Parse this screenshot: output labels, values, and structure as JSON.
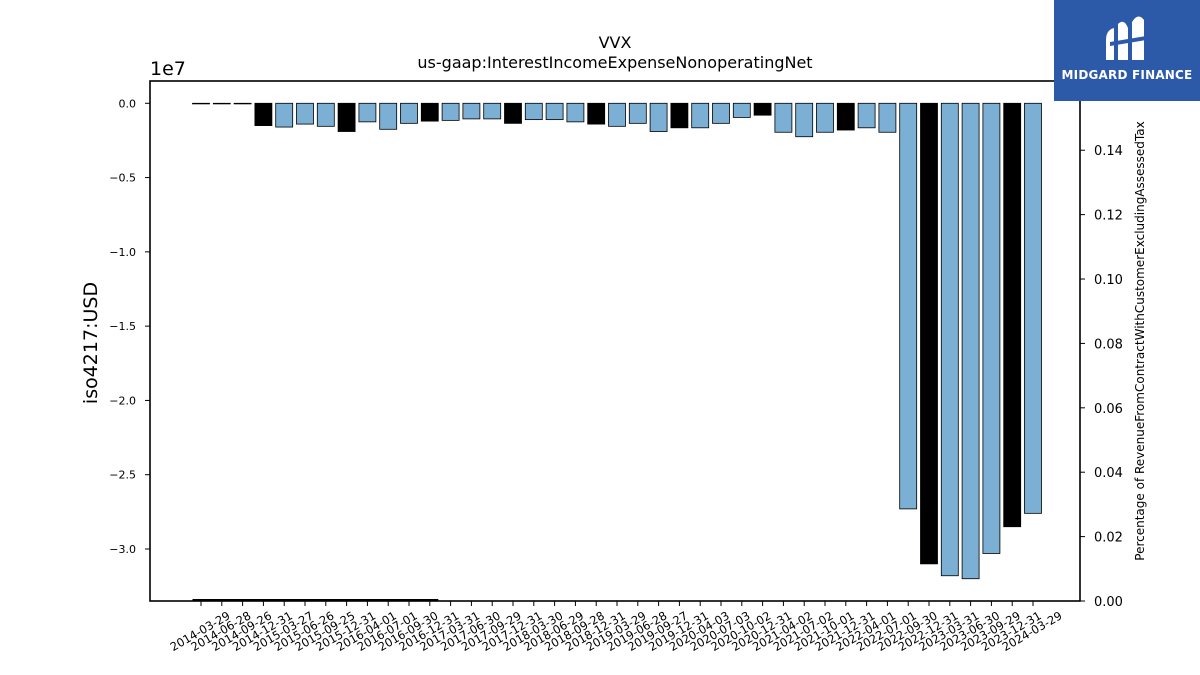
{
  "chart_data": {
    "type": "bar",
    "title": "VVX",
    "subtitle": "us-gaap:InterestIncomeExpenseNonoperatingNet",
    "ylabel": "iso4217:USD",
    "y_offset_label": "1e7",
    "y2label": "Percentage of RevenueFromContractWithCustomerExcludingAssessedTax",
    "ylim": [
      -33500000,
      1500000
    ],
    "y2lim": [
      0.0,
      0.1615
    ],
    "yticks": [
      "0.0",
      "−0.5",
      "−1.0",
      "−1.5",
      "−2.0",
      "−2.5",
      "−3.0"
    ],
    "y2ticks": [
      "0.00",
      "0.02",
      "0.04",
      "0.06",
      "0.08",
      "0.10",
      "0.12",
      "0.14",
      "0.16"
    ],
    "categories": [
      "2014-03-29",
      "2014-06-28",
      "2014-09-26",
      "2014-12-31",
      "2015-03-27",
      "2015-06-26",
      "2015-09-25",
      "2015-12-31",
      "2016-04-01",
      "2016-07-01",
      "2016-09-30",
      "2016-12-31",
      "2017-03-31",
      "2017-06-30",
      "2017-09-29",
      "2017-12-31",
      "2018-03-30",
      "2018-06-29",
      "2018-09-28",
      "2018-12-31",
      "2019-03-29",
      "2019-06-28",
      "2019-09-27",
      "2019-12-31",
      "2020-04-03",
      "2020-07-03",
      "2020-10-02",
      "2020-12-31",
      "2021-04-02",
      "2021-07-02",
      "2021-10-01",
      "2021-12-31",
      "2022-04-01",
      "2022-07-01",
      "2022-09-30",
      "2022-12-31",
      "2023-03-31",
      "2023-06-30",
      "2023-09-29",
      "2023-12-31",
      "2024-03-29"
    ],
    "values": [
      0,
      0,
      0,
      -1500000,
      -1600000,
      -1400000,
      -1550000,
      -1900000,
      -1250000,
      -1750000,
      -1350000,
      -1200000,
      -1150000,
      -1050000,
      -1050000,
      -1350000,
      -1100000,
      -1100000,
      -1250000,
      -1400000,
      -1550000,
      -1350000,
      -1900000,
      -1650000,
      -1650000,
      -1350000,
      -950000,
      -800000,
      -1950000,
      -2250000,
      -1950000,
      -1800000,
      -1650000,
      -1950000,
      -27300000,
      -31000000,
      -31800000,
      -32000000,
      -30300000,
      -28500000,
      -27600000
    ],
    "annual": [
      false,
      false,
      false,
      true,
      false,
      false,
      false,
      true,
      false,
      false,
      false,
      true,
      false,
      false,
      false,
      true,
      false,
      false,
      false,
      true,
      false,
      false,
      false,
      true,
      false,
      false,
      false,
      true,
      false,
      false,
      false,
      true,
      false,
      false,
      false,
      true,
      false,
      false,
      false,
      true,
      false
    ],
    "colors": {
      "quarter": "#7bafd4",
      "annual": "#000000",
      "edge": "#000000"
    },
    "grid": false
  },
  "logo": {
    "text": "MIDGARD FINANCE",
    "bg": "#2d5aa8"
  }
}
